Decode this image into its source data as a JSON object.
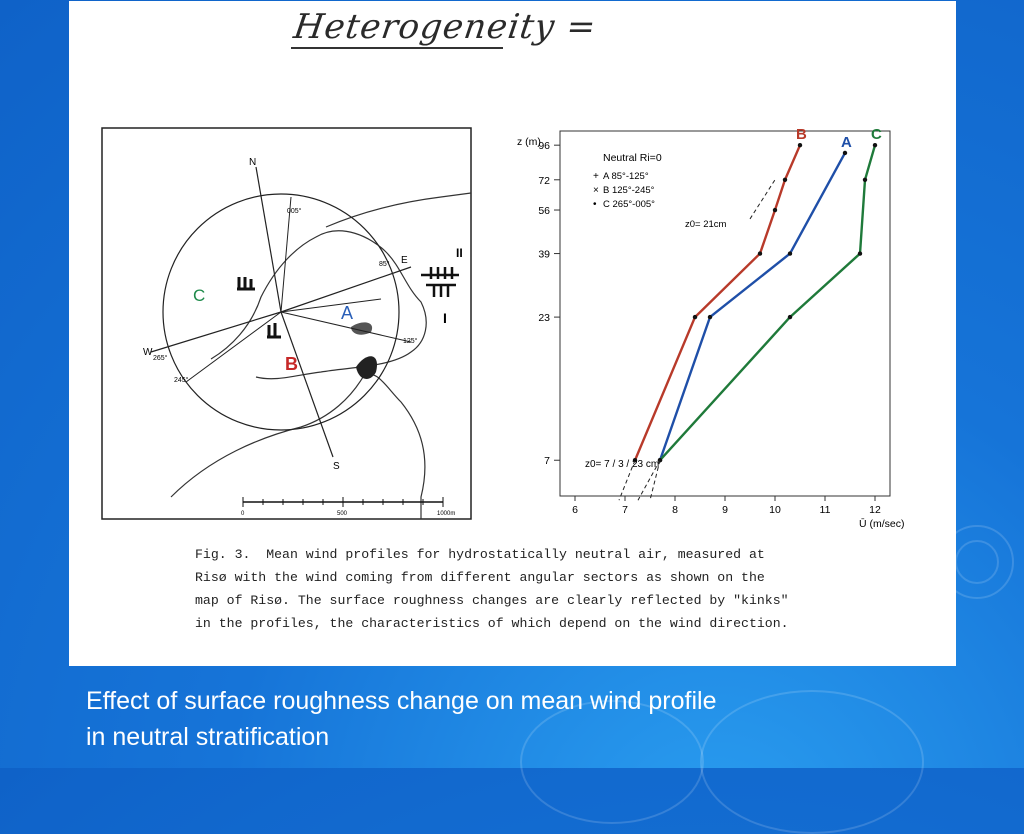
{
  "heading": "Heterogeneity =",
  "slide_caption_line1": "Effect of surface roughness change on mean wind profile",
  "slide_caption_line2": "in neutral stratification",
  "figure_caption": [
    "Fig. 3.  Mean wind profiles for hydrostatically neutral air, measured at",
    "Risø with the wind coming from different angular sectors as shown on the",
    "map of Risø. The surface roughness changes are clearly reflected by \"kinks\"",
    "in the profiles, the characteristics of which depend on the wind direction."
  ],
  "map": {
    "north": "N",
    "south": "S",
    "east": "E",
    "west": "W",
    "bearings": [
      "005°",
      "85°",
      "125°",
      "245°",
      "265°"
    ],
    "sector_labels": [
      "A",
      "B",
      "C"
    ],
    "roman": [
      "II",
      "I"
    ],
    "scale": [
      "0",
      "500",
      "1000m"
    ],
    "colors": {
      "A": "#2a5fb8",
      "B": "#c62828",
      "C": "#1e8a4a"
    }
  },
  "chart_data": {
    "type": "line",
    "title": "Neutral  Ri=0",
    "xlabel": "Ū (m/sec)",
    "ylabel": "z (m)",
    "x_ticks": [
      6,
      7,
      8,
      9,
      10,
      11,
      12
    ],
    "y_ticks": [
      7,
      23,
      39,
      56,
      72,
      96
    ],
    "xlim": [
      5.7,
      12.3
    ],
    "yscale": "log",
    "legend": [
      {
        "marker": "+",
        "text": "A   85°-125°"
      },
      {
        "marker": "×",
        "text": "B  125°-245°"
      },
      {
        "marker": "•",
        "text": "C  265°-005°"
      }
    ],
    "annotation_z0_lines": "z0= 21cm",
    "annotation_z0_points": "z0=   7 / 3 / 23  cm",
    "series": [
      {
        "name": "A",
        "color": "#1f4fa8",
        "x": [
          7.7,
          8.7,
          10.3,
          11.4
        ],
        "z": [
          7,
          23,
          39,
          90
        ]
      },
      {
        "name": "B",
        "color": "#b83a2a",
        "x": [
          7.2,
          8.4,
          9.7,
          10.0,
          10.2,
          10.5
        ],
        "z": [
          7,
          23,
          39,
          56,
          72,
          96
        ]
      },
      {
        "name": "C",
        "color": "#1f7a3a",
        "x": [
          7.7,
          10.3,
          11.7,
          11.8,
          12.0
        ],
        "z": [
          7,
          23,
          39,
          72,
          96
        ]
      }
    ],
    "series_labels": [
      "B",
      "A",
      "C"
    ]
  }
}
